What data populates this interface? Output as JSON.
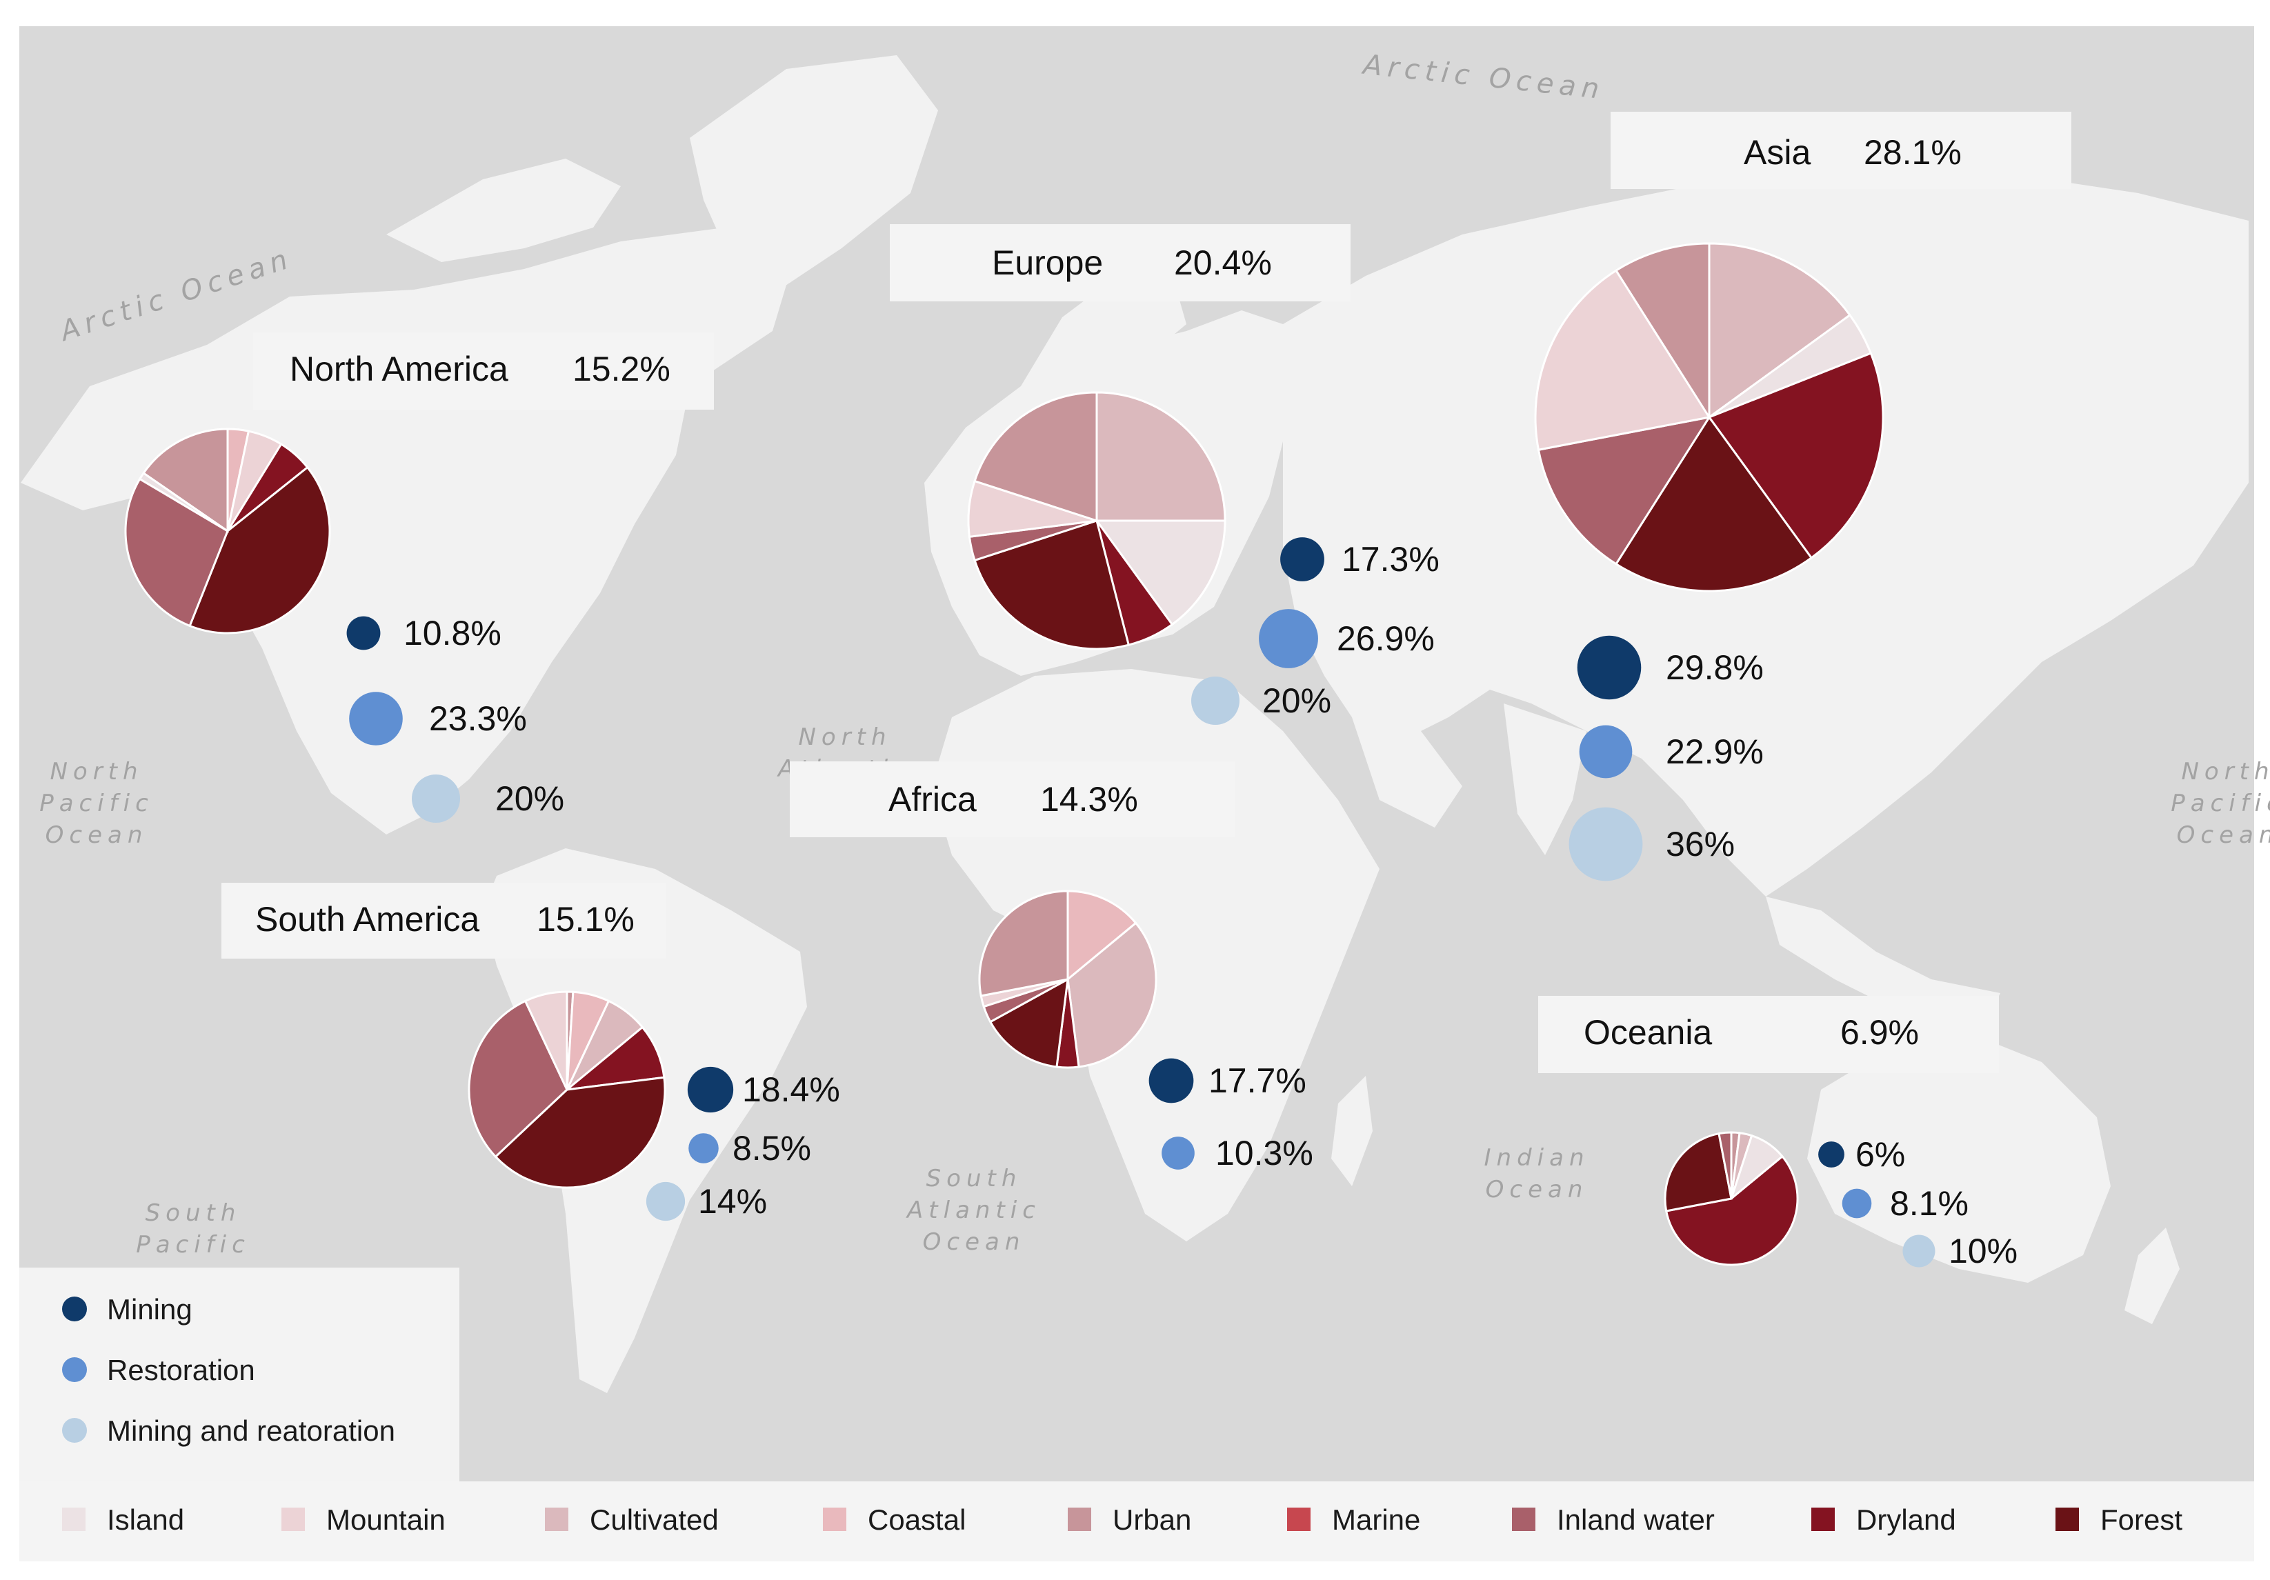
{
  "colors": {
    "ocean": "#d9d9d9",
    "land": "#f2f2f2",
    "Island": "#ece2e4",
    "Mountain": "#ecd3d6",
    "Cultivated": "#dbb9bd",
    "Coastal": "#e9b9bd",
    "Urban": "#c7959a",
    "Marine": "#c7474f",
    "Inland water": "#a9606a",
    "Dryland": "#841321",
    "Forest": "#6a1216",
    "Mining": "#0f3a6a",
    "Restoration": "#5f8fd2",
    "Mining and reatoration": "#b8cfe3"
  },
  "ocean_labels": [
    "Arctic Ocean",
    "Arctic Ocean",
    "North Pacific Ocean",
    "North Atlantic Ocean",
    "South Atlantic Ocean",
    "South Pacific",
    "Indian Ocean",
    "North Pacific Ocean"
  ],
  "regions": [
    {
      "id": "north-america",
      "name": "North America",
      "percent": "15.2%",
      "slices": [
        {
          "category": "Coastal",
          "value": 3
        },
        {
          "category": "Mountain",
          "value": 5
        },
        {
          "category": "Dryland",
          "value": 5
        },
        {
          "category": "Forest",
          "value": 38
        },
        {
          "category": "Inland water",
          "value": 25
        },
        {
          "category": "Island",
          "value": 1
        },
        {
          "category": "Urban",
          "value": 14
        }
      ],
      "bubbles": [
        {
          "type": "Mining",
          "label": "10.8%",
          "value": 10.8
        },
        {
          "type": "Restoration",
          "label": "23.3%",
          "value": 23.3
        },
        {
          "type": "Mining and reatoration",
          "label": "20%",
          "value": 20
        }
      ]
    },
    {
      "id": "europe",
      "name": "Europe",
      "percent": "20.4%",
      "slices": [
        {
          "category": "Cultivated",
          "value": 25
        },
        {
          "category": "Island",
          "value": 15
        },
        {
          "category": "Dryland",
          "value": 6
        },
        {
          "category": "Forest",
          "value": 24
        },
        {
          "category": "Inland water",
          "value": 3
        },
        {
          "category": "Mountain",
          "value": 7
        },
        {
          "category": "Urban",
          "value": 20
        }
      ],
      "bubbles": [
        {
          "type": "Mining",
          "label": "17.3%",
          "value": 17.3
        },
        {
          "type": "Restoration",
          "label": "26.9%",
          "value": 26.9
        },
        {
          "type": "Mining and reatoration",
          "label": "20%",
          "value": 20
        }
      ]
    },
    {
      "id": "asia",
      "name": "Asia",
      "percent": "28.1%",
      "slices": [
        {
          "category": "Cultivated",
          "value": 15
        },
        {
          "category": "Island",
          "value": 4
        },
        {
          "category": "Dryland",
          "value": 21
        },
        {
          "category": "Forest",
          "value": 19
        },
        {
          "category": "Inland water",
          "value": 13
        },
        {
          "category": "Mountain",
          "value": 19
        },
        {
          "category": "Urban",
          "value": 9
        }
      ],
      "bubbles": [
        {
          "type": "Mining",
          "label": "29.8%",
          "value": 29.8
        },
        {
          "type": "Restoration",
          "label": "22.9%",
          "value": 22.9
        },
        {
          "type": "Mining and reatoration",
          "label": "36%",
          "value": 36
        }
      ]
    },
    {
      "id": "africa",
      "name": "Africa",
      "percent": "14.3%",
      "slices": [
        {
          "category": "Coastal",
          "value": 14
        },
        {
          "category": "Cultivated",
          "value": 34
        },
        {
          "category": "Dryland",
          "value": 4
        },
        {
          "category": "Forest",
          "value": 15
        },
        {
          "category": "Inland water",
          "value": 3
        },
        {
          "category": "Mountain",
          "value": 2
        },
        {
          "category": "Urban",
          "value": 28
        }
      ],
      "bubbles": [
        {
          "type": "Mining",
          "label": "17.7%",
          "value": 17.7
        },
        {
          "type": "Restoration",
          "label": "10.3%",
          "value": 10.3
        }
      ]
    },
    {
      "id": "south-america",
      "name": "South America",
      "percent": "15.1%",
      "slices": [
        {
          "category": "Urban",
          "value": 1
        },
        {
          "category": "Coastal",
          "value": 6
        },
        {
          "category": "Cultivated",
          "value": 7
        },
        {
          "category": "Dryland",
          "value": 9
        },
        {
          "category": "Forest",
          "value": 40
        },
        {
          "category": "Inland water",
          "value": 30
        },
        {
          "category": "Mountain",
          "value": 7
        }
      ],
      "bubbles": [
        {
          "type": "Mining",
          "label": "18.4%",
          "value": 18.4
        },
        {
          "type": "Restoration",
          "label": "8.5%",
          "value": 8.5
        },
        {
          "type": "Mining and reatoration",
          "label": "14%",
          "value": 14
        }
      ]
    },
    {
      "id": "oceania",
      "name": "Oceania",
      "percent": "6.9%",
      "slices": [
        {
          "category": "Urban",
          "value": 2
        },
        {
          "category": "Cultivated",
          "value": 3
        },
        {
          "category": "Island",
          "value": 9
        },
        {
          "category": "Dryland",
          "value": 58
        },
        {
          "category": "Forest",
          "value": 25
        },
        {
          "category": "Inland water",
          "value": 3
        }
      ],
      "bubbles": [
        {
          "type": "Mining",
          "label": "6%",
          "value": 6
        },
        {
          "type": "Restoration",
          "label": "8.1%",
          "value": 8.1
        },
        {
          "type": "Mining and reatoration",
          "label": "10%",
          "value": 10
        }
      ]
    }
  ],
  "bubble_legend": [
    "Mining",
    "Restoration",
    "Mining and reatoration"
  ],
  "category_legend": [
    "Island",
    "Mountain",
    "Cultivated",
    "Coastal",
    "Urban",
    "Marine",
    "Inland water",
    "Dryland",
    "Forest"
  ]
}
